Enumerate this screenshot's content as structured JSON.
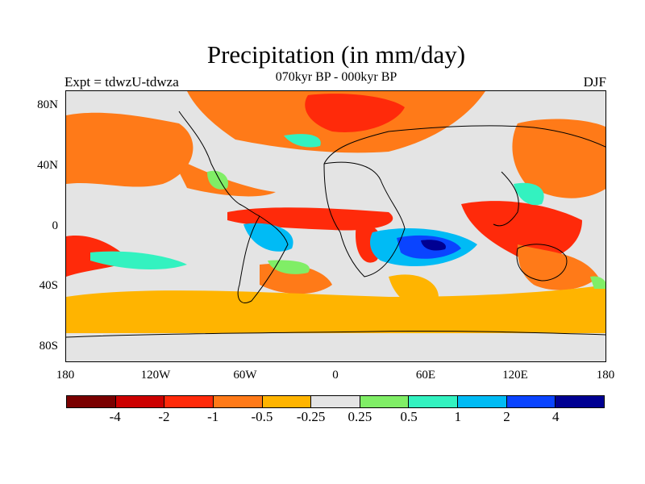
{
  "header": {
    "title": "Precipitation (in mm/day)",
    "subtitle": "070kyr BP - 000kyr BP",
    "experiment": "Expt = tdwzU-tdwza",
    "season": "DJF"
  },
  "map": {
    "lat_labels": [
      "80N",
      "40N",
      "0",
      "40S",
      "80S"
    ],
    "lon_labels": [
      "180",
      "120W",
      "60W",
      "0",
      "60E",
      "120E",
      "180"
    ]
  },
  "colorbar": {
    "colors": [
      "#7a0000",
      "#cc0000",
      "#ff2a0a",
      "#ff7a18",
      "#ffb400",
      "#e4e4e4",
      "#80ee66",
      "#33f2c0",
      "#00bbf5",
      "#0a44ff",
      "#000092"
    ],
    "labels": [
      "-4",
      "-2",
      "-1",
      "-0.5",
      "-0.25",
      "0.25",
      "0.5",
      "1",
      "2",
      "4"
    ]
  }
}
